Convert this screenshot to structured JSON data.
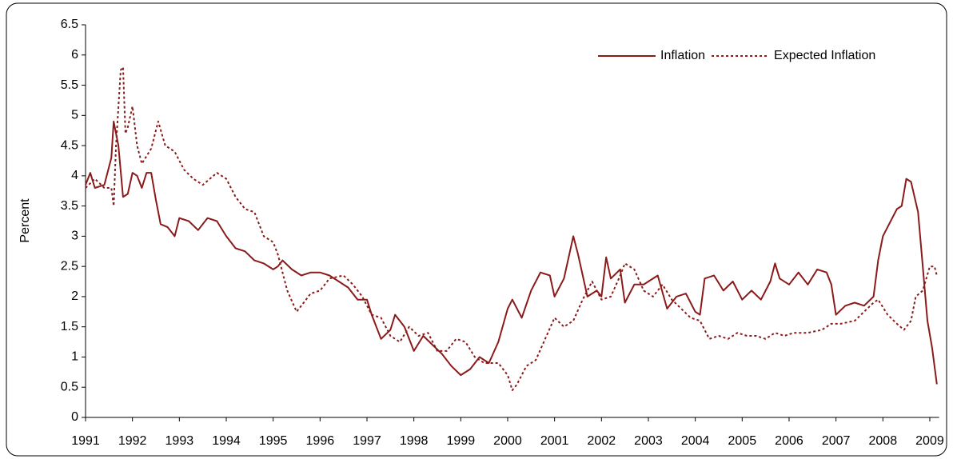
{
  "chart_data": {
    "type": "line",
    "ylabel": "Percent",
    "legend": "upper right",
    "xlim": [
      1991,
      2009.2
    ],
    "xticks": [
      1991,
      1992,
      1993,
      1994,
      1995,
      1996,
      1997,
      1998,
      1999,
      2000,
      2001,
      2002,
      2003,
      2004,
      2005,
      2006,
      2007,
      2008,
      2009
    ],
    "ylim": [
      0,
      6.5
    ],
    "yticks": [
      0,
      0.5,
      1,
      1.5,
      2,
      2.5,
      3,
      3.5,
      4,
      4.5,
      5,
      5.5,
      6,
      6.5
    ],
    "series": [
      {
        "name": "Inflation",
        "color": "#8b1a1a",
        "dash": false,
        "x": [
          1991.0,
          1991.1,
          1991.2,
          1991.4,
          1991.55,
          1991.6,
          1991.7,
          1991.8,
          1991.9,
          1992.0,
          1992.1,
          1992.2,
          1992.3,
          1992.4,
          1992.5,
          1992.6,
          1992.75,
          1992.9,
          1993.0,
          1993.2,
          1993.4,
          1993.6,
          1993.8,
          1994.0,
          1994.2,
          1994.4,
          1994.6,
          1994.8,
          1995.0,
          1995.1,
          1995.2,
          1995.4,
          1995.6,
          1995.8,
          1996.0,
          1996.2,
          1996.4,
          1996.6,
          1996.8,
          1997.0,
          1997.1,
          1997.3,
          1997.5,
          1997.6,
          1997.8,
          1998.0,
          1998.2,
          1998.4,
          1998.6,
          1998.8,
          1999.0,
          1999.2,
          1999.4,
          1999.6,
          1999.8,
          2000.0,
          2000.1,
          2000.3,
          2000.5,
          2000.7,
          2000.9,
          2001.0,
          2001.2,
          2001.4,
          2001.5,
          2001.7,
          2001.9,
          2002.0,
          2002.1,
          2002.2,
          2002.4,
          2002.5,
          2002.7,
          2002.9,
          2003.0,
          2003.2,
          2003.4,
          2003.6,
          2003.8,
          2004.0,
          2004.1,
          2004.2,
          2004.4,
          2004.6,
          2004.8,
          2005.0,
          2005.2,
          2005.4,
          2005.6,
          2005.7,
          2005.8,
          2006.0,
          2006.2,
          2006.4,
          2006.6,
          2006.8,
          2006.9,
          2007.0,
          2007.2,
          2007.4,
          2007.6,
          2007.8,
          2007.9,
          2008.0,
          2008.2,
          2008.3,
          2008.4,
          2008.5,
          2008.6,
          2008.75,
          2008.85,
          2008.95,
          2009.05,
          2009.15
        ],
        "values": [
          3.85,
          4.05,
          3.8,
          3.85,
          4.3,
          4.9,
          4.5,
          3.65,
          3.7,
          4.05,
          4.0,
          3.8,
          4.05,
          4.05,
          3.6,
          3.2,
          3.15,
          3.0,
          3.3,
          3.25,
          3.1,
          3.3,
          3.25,
          3.0,
          2.8,
          2.75,
          2.6,
          2.55,
          2.45,
          2.5,
          2.6,
          2.45,
          2.35,
          2.4,
          2.4,
          2.35,
          2.25,
          2.15,
          1.95,
          1.95,
          1.7,
          1.3,
          1.45,
          1.7,
          1.5,
          1.1,
          1.35,
          1.2,
          1.05,
          0.85,
          0.7,
          0.8,
          1.0,
          0.9,
          1.25,
          1.8,
          1.95,
          1.65,
          2.1,
          2.4,
          2.35,
          2.0,
          2.3,
          3.0,
          2.7,
          2.0,
          2.1,
          2.0,
          2.65,
          2.3,
          2.45,
          1.9,
          2.2,
          2.2,
          2.25,
          2.35,
          1.8,
          2.0,
          2.05,
          1.75,
          1.7,
          2.3,
          2.35,
          2.1,
          2.25,
          1.95,
          2.1,
          1.95,
          2.25,
          2.55,
          2.3,
          2.2,
          2.4,
          2.2,
          2.45,
          2.4,
          2.2,
          1.7,
          1.85,
          1.9,
          1.85,
          2.0,
          2.6,
          3.0,
          3.3,
          3.45,
          3.5,
          3.95,
          3.9,
          3.4,
          2.5,
          1.6,
          1.15,
          0.55
        ]
      },
      {
        "name": "Expected Inflation",
        "color": "#8b1a1a",
        "dash": true,
        "x": [
          1991.0,
          1991.2,
          1991.4,
          1991.55,
          1991.6,
          1991.65,
          1991.75,
          1991.8,
          1991.85,
          1991.9,
          1992.0,
          1992.1,
          1992.2,
          1992.4,
          1992.55,
          1992.7,
          1992.9,
          1993.1,
          1993.3,
          1993.5,
          1993.8,
          1994.0,
          1994.2,
          1994.4,
          1994.6,
          1994.8,
          1995.0,
          1995.1,
          1995.3,
          1995.5,
          1995.6,
          1995.8,
          1996.0,
          1996.2,
          1996.5,
          1996.7,
          1996.9,
          1997.1,
          1997.3,
          1997.5,
          1997.7,
          1997.9,
          1998.1,
          1998.3,
          1998.5,
          1998.7,
          1998.9,
          1999.1,
          1999.3,
          1999.5,
          1999.8,
          2000.0,
          2000.1,
          2000.2,
          2000.4,
          2000.6,
          2000.8,
          2001.0,
          2001.2,
          2001.4,
          2001.6,
          2001.8,
          2002.0,
          2002.2,
          2002.4,
          2002.5,
          2002.7,
          2002.9,
          2003.1,
          2003.3,
          2003.5,
          2003.7,
          2003.9,
          2004.1,
          2004.3,
          2004.5,
          2004.7,
          2004.9,
          2005.1,
          2005.3,
          2005.5,
          2005.7,
          2005.9,
          2006.1,
          2006.4,
          2006.7,
          2006.9,
          2007.1,
          2007.4,
          2007.6,
          2007.8,
          2007.9,
          2008.1,
          2008.3,
          2008.45,
          2008.6,
          2008.7,
          2008.85,
          2009.0,
          2009.1,
          2009.15
        ],
        "values": [
          3.8,
          3.95,
          3.8,
          3.8,
          3.5,
          4.5,
          5.75,
          5.8,
          4.7,
          4.8,
          5.15,
          4.5,
          4.2,
          4.45,
          4.9,
          4.5,
          4.4,
          4.1,
          3.95,
          3.85,
          4.05,
          3.95,
          3.65,
          3.45,
          3.4,
          3.0,
          2.9,
          2.7,
          2.1,
          1.75,
          1.85,
          2.05,
          2.1,
          2.3,
          2.35,
          2.2,
          2.0,
          1.7,
          1.65,
          1.35,
          1.25,
          1.5,
          1.35,
          1.4,
          1.1,
          1.1,
          1.3,
          1.25,
          1.0,
          0.9,
          0.9,
          0.7,
          0.45,
          0.55,
          0.85,
          0.95,
          1.3,
          1.65,
          1.5,
          1.6,
          1.95,
          2.25,
          1.95,
          2.0,
          2.35,
          2.55,
          2.45,
          2.1,
          2.0,
          2.2,
          1.95,
          1.8,
          1.65,
          1.6,
          1.3,
          1.35,
          1.3,
          1.4,
          1.35,
          1.35,
          1.3,
          1.4,
          1.35,
          1.4,
          1.4,
          1.45,
          1.55,
          1.55,
          1.6,
          1.75,
          1.9,
          1.95,
          1.7,
          1.55,
          1.45,
          1.6,
          2.0,
          2.1,
          2.5,
          2.5,
          2.35
        ]
      }
    ]
  }
}
